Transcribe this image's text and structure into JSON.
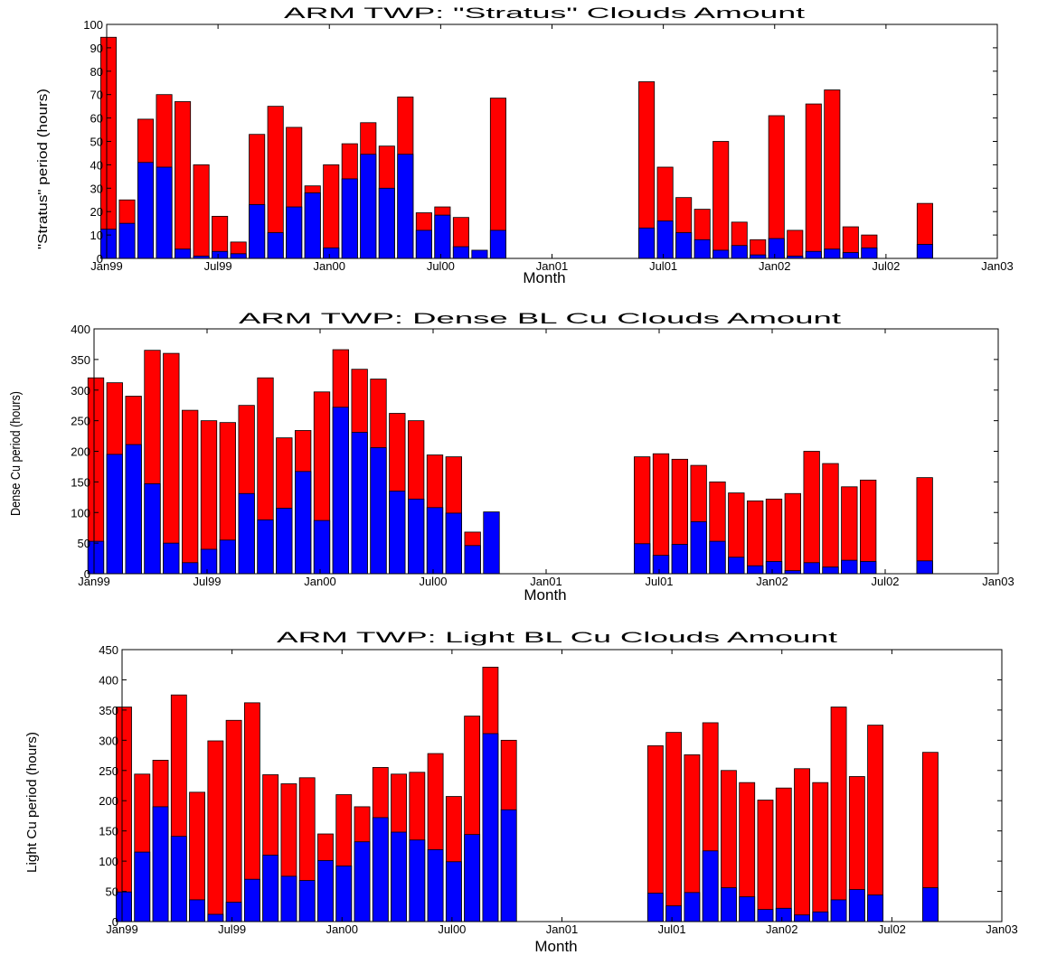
{
  "colors": {
    "total": "#ff0000",
    "inner": "#0000ff",
    "edge": "#000000"
  },
  "chart_data": [
    {
      "type": "bar",
      "title": "ARM TWP: \"Stratus\" Clouds Amount",
      "xlabel": "Month",
      "ylabel": "\"Stratus\" period (hours)",
      "ylim": [
        0,
        100
      ],
      "yticks": [
        0,
        10,
        20,
        30,
        40,
        50,
        60,
        70,
        80,
        90,
        100
      ],
      "xrange": [
        "Jan99",
        "Jan03"
      ],
      "xticks": [
        "Jan99",
        "Jul99",
        "Jan00",
        "Jul00",
        "Jan01",
        "Jul01",
        "Jan02",
        "Jul02",
        "Jan03"
      ],
      "legend": "none",
      "grid": false,
      "months": [
        "Jan99",
        "Feb99",
        "Mar99",
        "Apr99",
        "May99",
        "Jun99",
        "Jul99",
        "Aug99",
        "Sep99",
        "Oct99",
        "Nov99",
        "Dec99",
        "Jan00",
        "Feb00",
        "Mar00",
        "Apr00",
        "May00",
        "Jun00",
        "Jul00",
        "Aug00",
        "Sep00",
        "Oct00",
        "Jun01",
        "Jul01",
        "Aug01",
        "Sep01",
        "Oct01",
        "Nov01",
        "Dec01",
        "Jan02",
        "Feb02",
        "Mar02",
        "Apr02",
        "May02",
        "Jun02",
        "Sep02"
      ],
      "series": [
        {
          "values": [
            94.5,
            25,
            59.5,
            70,
            67,
            40,
            18,
            7,
            53,
            65,
            56,
            31,
            40,
            49,
            58,
            48,
            69,
            19.5,
            22,
            17.5,
            0,
            68.5,
            75.5,
            39,
            26,
            21,
            50,
            15.5,
            8,
            61,
            12,
            66,
            72,
            13.5,
            10,
            23.5
          ]
        },
        {
          "values": [
            12.5,
            15,
            41,
            39,
            4,
            1,
            3,
            2,
            23,
            11,
            22,
            28,
            4.5,
            34,
            44.5,
            30,
            44.5,
            12,
            18.5,
            5,
            3.5,
            12,
            13,
            16,
            11,
            8,
            3.5,
            5.5,
            1.5,
            8.5,
            1,
            3,
            4,
            2.5,
            4.5,
            6
          ]
        }
      ]
    },
    {
      "type": "bar",
      "title": "ARM TWP: Dense BL Cu Clouds Amount",
      "xlabel": "Month",
      "ylabel": "Dense Cu period (hours)",
      "ylim": [
        0,
        400
      ],
      "yticks": [
        0,
        50,
        100,
        150,
        200,
        250,
        300,
        350,
        400
      ],
      "xrange": [
        "Jan99",
        "Jan03"
      ],
      "xticks": [
        "Jan99",
        "Jul99",
        "Jan00",
        "Jul00",
        "Jan01",
        "Jul01",
        "Jan02",
        "Jul02",
        "Jan03"
      ],
      "legend": "none",
      "grid": false,
      "months": [
        "Jan99",
        "Feb99",
        "Mar99",
        "Apr99",
        "May99",
        "Jun99",
        "Jul99",
        "Aug99",
        "Sep99",
        "Oct99",
        "Nov99",
        "Dec99",
        "Jan00",
        "Feb00",
        "Mar00",
        "Apr00",
        "May00",
        "Jun00",
        "Jul00",
        "Aug00",
        "Sep00",
        "Oct00",
        "Jun01",
        "Jul01",
        "Aug01",
        "Sep01",
        "Oct01",
        "Nov01",
        "Dec01",
        "Jan02",
        "Feb02",
        "Mar02",
        "Apr02",
        "May02",
        "Jun02",
        "Sep02"
      ],
      "series": [
        {
          "values": [
            320,
            312,
            290,
            365,
            360,
            267,
            250,
            247,
            275,
            320,
            222,
            234,
            297,
            366,
            334,
            318,
            262,
            250,
            194,
            191,
            68,
            0,
            191,
            196,
            187,
            177,
            150,
            132,
            119,
            122,
            131,
            200,
            180,
            142,
            153,
            157
          ]
        },
        {
          "values": [
            53,
            195,
            211,
            147,
            50,
            18,
            40,
            55,
            131,
            88,
            107,
            167,
            87,
            272,
            231,
            206,
            135,
            122,
            108,
            99,
            46,
            101,
            49,
            30,
            48,
            85,
            53,
            27,
            13,
            20,
            5,
            18,
            11,
            22,
            20,
            21
          ]
        }
      ]
    },
    {
      "type": "bar",
      "title": "ARM TWP: Light BL Cu Clouds Amount",
      "xlabel": "Month",
      "ylabel": "Light Cu period (hours)",
      "ylim": [
        0,
        450
      ],
      "yticks": [
        0,
        50,
        100,
        150,
        200,
        250,
        300,
        350,
        400,
        450
      ],
      "xrange": [
        "Jan99",
        "Jan03"
      ],
      "xticks": [
        "Jan99",
        "Jul99",
        "Jan00",
        "Jul00",
        "Jan01",
        "Jul01",
        "Jan02",
        "Jul02",
        "Jan03"
      ],
      "legend": "none",
      "grid": false,
      "months": [
        "Jan99",
        "Feb99",
        "Mar99",
        "Apr99",
        "May99",
        "Jun99",
        "Jul99",
        "Aug99",
        "Sep99",
        "Oct99",
        "Nov99",
        "Dec99",
        "Jan00",
        "Feb00",
        "Mar00",
        "Apr00",
        "May00",
        "Jun00",
        "Jul00",
        "Aug00",
        "Sep00",
        "Oct00",
        "Jun01",
        "Jul01",
        "Aug01",
        "Sep01",
        "Oct01",
        "Nov01",
        "Dec01",
        "Jan02",
        "Feb02",
        "Mar02",
        "Apr02",
        "May02",
        "Jun02",
        "Sep02"
      ],
      "series": [
        {
          "values": [
            355,
            244,
            267,
            375,
            214,
            299,
            333,
            362,
            243,
            228,
            238,
            145,
            210,
            190,
            255,
            244,
            247,
            278,
            207,
            340,
            421,
            300,
            291,
            313,
            276,
            329,
            250,
            230,
            201,
            221,
            253,
            230,
            355,
            240,
            325,
            280
          ]
        },
        {
          "values": [
            49,
            115,
            190,
            141,
            36,
            12,
            32,
            70,
            110,
            75,
            68,
            101,
            92,
            132,
            172,
            148,
            135,
            119,
            99,
            144,
            311,
            185,
            47,
            26,
            48,
            117,
            56,
            41,
            20,
            22,
            11,
            16,
            36,
            53,
            44,
            56
          ]
        }
      ]
    }
  ]
}
